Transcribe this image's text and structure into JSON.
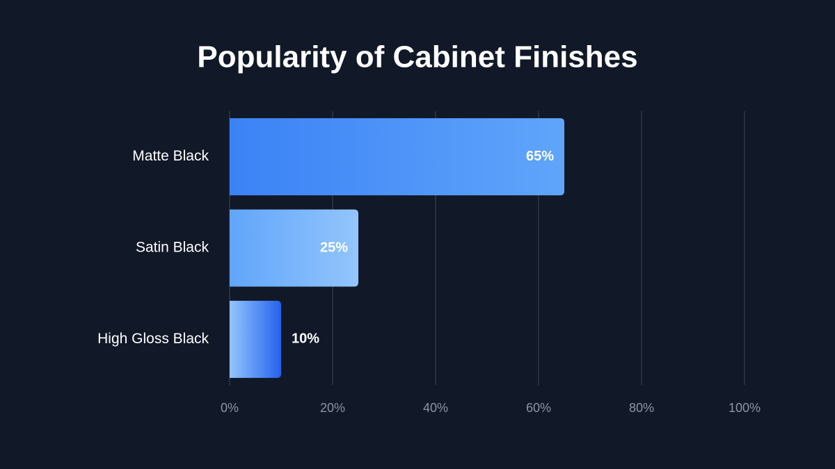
{
  "chart_data": {
    "type": "bar",
    "orientation": "horizontal",
    "title": "Popularity of Cabinet Finishes",
    "categories": [
      "Matte Black",
      "Satin Black",
      "High Gloss Black"
    ],
    "values": [
      65,
      25,
      10
    ],
    "value_labels": [
      "65%",
      "25%",
      "10%"
    ],
    "colors": [
      [
        "#3b82f6",
        "#60a5fa"
      ],
      [
        "#60a5fa",
        "#93c5fd"
      ],
      [
        "#93c5fd",
        "#2563eb"
      ]
    ],
    "xlim": [
      0,
      100
    ],
    "xticks": [
      {
        "value": 0,
        "label": "0%"
      },
      {
        "value": 20,
        "label": "20%"
      },
      {
        "value": 40,
        "label": "40%"
      },
      {
        "value": 60,
        "label": "60%"
      },
      {
        "value": 80,
        "label": "80%"
      },
      {
        "value": 100,
        "label": "100%"
      }
    ],
    "grid": true
  }
}
